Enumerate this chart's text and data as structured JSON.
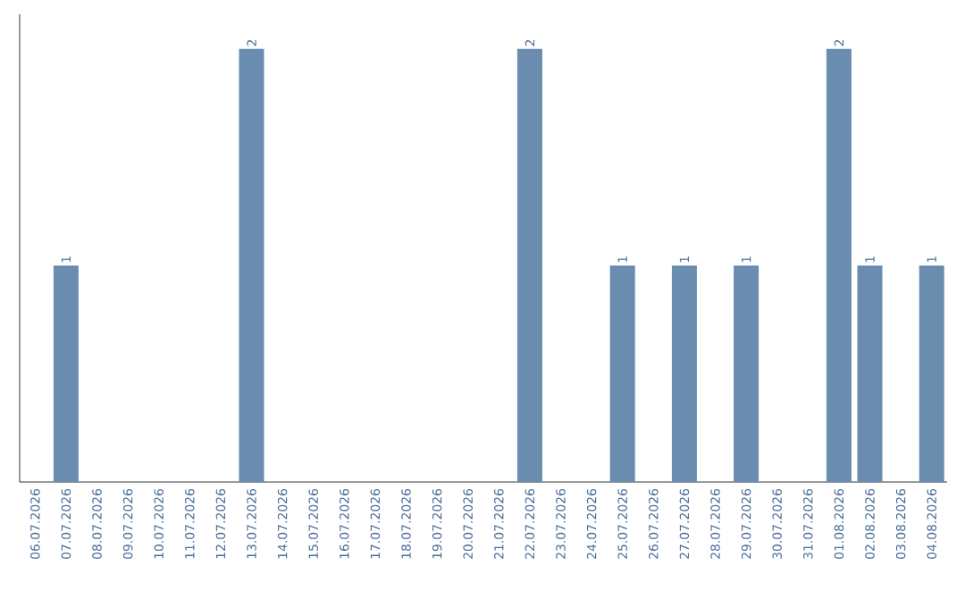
{
  "chart_data": {
    "type": "bar",
    "categories": [
      "06.07.2026",
      "07.07.2026",
      "08.07.2026",
      "09.07.2026",
      "10.07.2026",
      "11.07.2026",
      "12.07.2026",
      "13.07.2026",
      "14.07.2026",
      "15.07.2026",
      "16.07.2026",
      "17.07.2026",
      "18.07.2026",
      "19.07.2026",
      "20.07.2026",
      "21.07.2026",
      "22.07.2026",
      "23.07.2026",
      "24.07.2026",
      "25.07.2026",
      "26.07.2026",
      "27.07.2026",
      "28.07.2026",
      "29.07.2026",
      "30.07.2026",
      "31.07.2026",
      "01.08.2026",
      "02.08.2026",
      "03.08.2026",
      "04.08.2026"
    ],
    "values": [
      0,
      1,
      0,
      0,
      0,
      0,
      0,
      2,
      0,
      0,
      0,
      0,
      0,
      0,
      0,
      0,
      2,
      0,
      0,
      1,
      0,
      1,
      0,
      1,
      0,
      0,
      2,
      1,
      0,
      1
    ],
    "value_labels": [
      null,
      "1",
      null,
      null,
      null,
      null,
      null,
      "2",
      null,
      null,
      null,
      null,
      null,
      null,
      null,
      null,
      "2",
      null,
      null,
      "1",
      null,
      "1",
      null,
      "1",
      null,
      null,
      "2",
      "1",
      null,
      "1"
    ],
    "color": "#6a8caf",
    "tick_labels": "x"
  }
}
